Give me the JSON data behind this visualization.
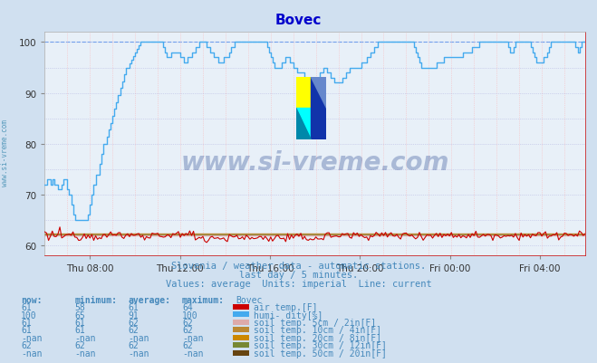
{
  "title": "Bovec",
  "title_color": "#0000cc",
  "bg_color": "#d0e0f0",
  "plot_bg_color": "#e8f0f8",
  "grid_color_v": "#ffaaaa",
  "grid_color_h": "#aaaadd",
  "xlabel_ticks": [
    "Thu 08:00",
    "Thu 12:00",
    "Thu 16:00",
    "Thu 20:00",
    "Fri 00:00",
    "Fri 04:00"
  ],
  "xlabel_tick_fractions": [
    0.0833,
    0.25,
    0.4167,
    0.5833,
    0.75,
    0.9167
  ],
  "ylim_low": 58,
  "ylim_high": 102,
  "yticks": [
    60,
    70,
    80,
    90,
    100
  ],
  "subtitle1": "Slovenia / weather data - automatic stations.",
  "subtitle2": "last day / 5 minutes.",
  "subtitle3": "Values: average  Units: imperial  Line: current",
  "subtitle_color": "#4488bb",
  "watermark_text": "www.si-vreme.com",
  "watermark_color": "#1a3a8a",
  "left_label": "www.si-vreme.com",
  "left_label_color": "#5599bb",
  "legend_headers": [
    "now:",
    "minimum:",
    "average:",
    "maximum:",
    "Bovec"
  ],
  "legend_rows": [
    {
      "now": "61",
      "min": "58",
      "avg": "61",
      "max": "64",
      "color": "#cc0000",
      "label": "air temp.[F]"
    },
    {
      "now": "100",
      "min": "65",
      "avg": "91",
      "max": "100",
      "color": "#44aaee",
      "label": "humi- dity[%]"
    },
    {
      "now": "61",
      "min": "61",
      "avg": "62",
      "max": "62",
      "color": "#ddaaaa",
      "label": "soil temp. 5cm / 2in[F]"
    },
    {
      "now": "61",
      "min": "61",
      "avg": "62",
      "max": "62",
      "color": "#bb8833",
      "label": "soil temp. 10cm / 4in[F]"
    },
    {
      "now": "-nan",
      "min": "-nan",
      "avg": "-nan",
      "max": "-nan",
      "color": "#cc8800",
      "label": "soil temp. 20cm / 8in[F]"
    },
    {
      "now": "62",
      "min": "62",
      "avg": "62",
      "max": "62",
      "color": "#778833",
      "label": "soil temp. 30cm / 12in[F]"
    },
    {
      "now": "-nan",
      "min": "-nan",
      "avg": "-nan",
      "max": "-nan",
      "color": "#664411",
      "label": "soil temp. 50cm / 20in[F]"
    }
  ],
  "air_color": "#cc0000",
  "hum_color": "#44aaee",
  "soil5_color": "#ddaaaa",
  "soil10_color": "#bb8833",
  "soil30_color": "#778833",
  "dashed_color": "#4488ee",
  "n_points": 288
}
